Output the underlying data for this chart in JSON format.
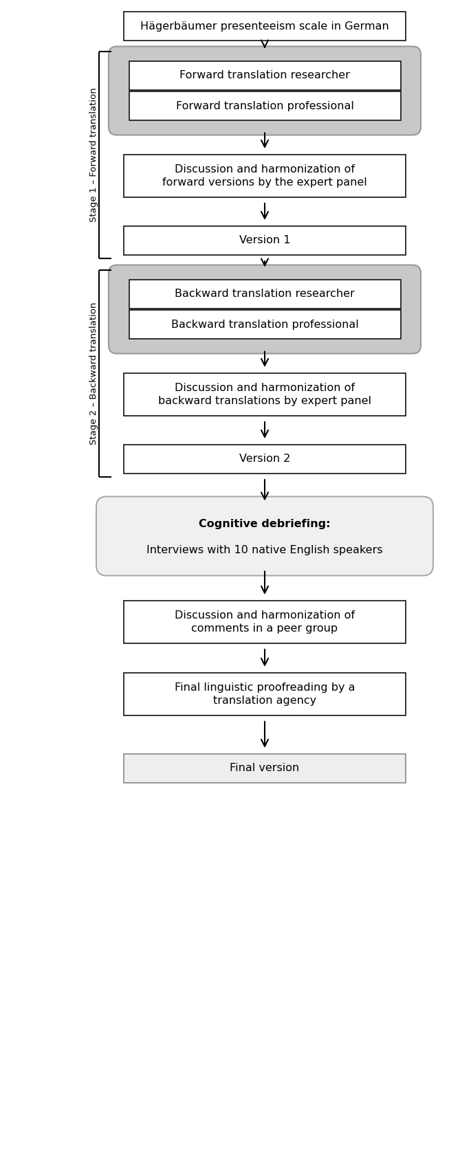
{
  "title": "Hägerbäumer presenteeism scale in German",
  "stage1_label": "Stage 1 – Forward translation",
  "stage2_label": "Stage 2 – Backward translation",
  "fwd1": "Forward translation researcher",
  "fwd2": "Forward translation professional",
  "disc1": "Discussion and harmonization of\nforward versions by the expert panel",
  "ver1": "Version 1",
  "bwd1": "Backward translation researcher",
  "bwd2": "Backward translation professional",
  "disc2": "Discussion and harmonization of\nbackward translations by expert panel",
  "ver2": "Version 2",
  "cog_bold": "Cognitive debriefing:",
  "cog_normal": "Interviews with 10 native English speakers",
  "disc3": "Discussion and harmonization of\ncomments in a peer group",
  "proof": "Final linguistic proofreading by a\ntranslation agency",
  "final": "Final version",
  "box_color": "#ffffff",
  "box_edge": "#111111",
  "gray_fill": "#c8c8c8",
  "gray_edge": "#999999",
  "cog_fill": "#f0f0f0",
  "cog_edge": "#aaaaaa",
  "final_fill": "#eeeeee",
  "final_edge": "#888888",
  "bg_color": "#ffffff",
  "arrow_color": "#000000",
  "text_color": "#000000"
}
